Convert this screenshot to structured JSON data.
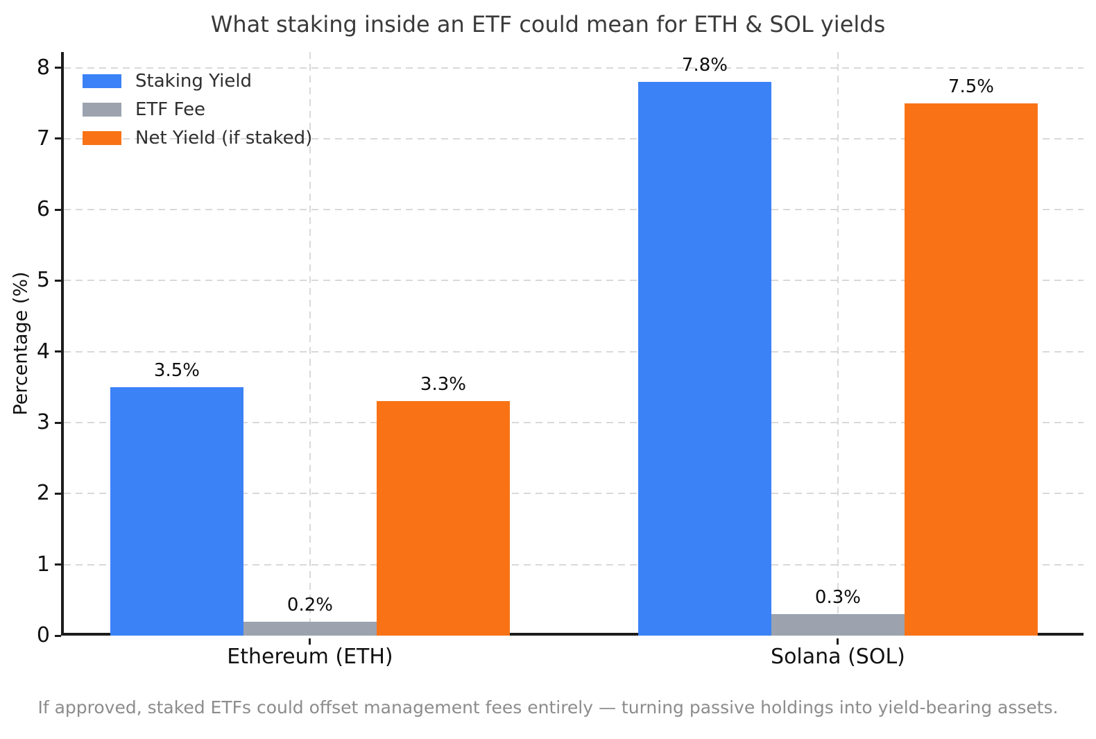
{
  "title": "What staking inside an ETF could mean for ETH & SOL yields",
  "footnote": "If approved, staked ETFs could offset management fees entirely — turning passive holdings into yield-bearing assets.",
  "colors": {
    "staking_yield": "#3b82f6",
    "etf_fee": "#9ca3af",
    "net_yield": "#f97316",
    "grid": "#d9d9d9",
    "spine": "#1c1c1c",
    "title_text": "#3a3a3a",
    "footnote_text": "#8c8c8c"
  },
  "chart_data": {
    "type": "bar",
    "title": "What staking inside an ETF could mean for ETH & SOL yields",
    "categories": [
      "Ethereum (ETH)",
      "Solana (SOL)"
    ],
    "series": [
      {
        "name": "Staking Yield",
        "color": "#3b82f6",
        "values": [
          3.5,
          7.8
        ]
      },
      {
        "name": "ETF Fee",
        "color": "#9ca3af",
        "values": [
          0.2,
          0.3
        ]
      },
      {
        "name": "Net Yield (if staked)",
        "color": "#f97316",
        "values": [
          3.3,
          7.5
        ]
      }
    ],
    "bar_value_labels": [
      [
        "3.5%",
        "0.2%",
        "3.3%"
      ],
      [
        "7.8%",
        "0.3%",
        "7.5%"
      ]
    ],
    "xlabel": "",
    "ylabel": "Percentage (%)",
    "ylim": [
      0,
      8
    ],
    "yticks": [
      0,
      1,
      2,
      3,
      4,
      5,
      6,
      7,
      8
    ],
    "grid": "dashed",
    "legend_position": "upper-left",
    "annotation": "If approved, staked ETFs could offset management fees entirely — turning passive holdings into yield-bearing assets."
  }
}
